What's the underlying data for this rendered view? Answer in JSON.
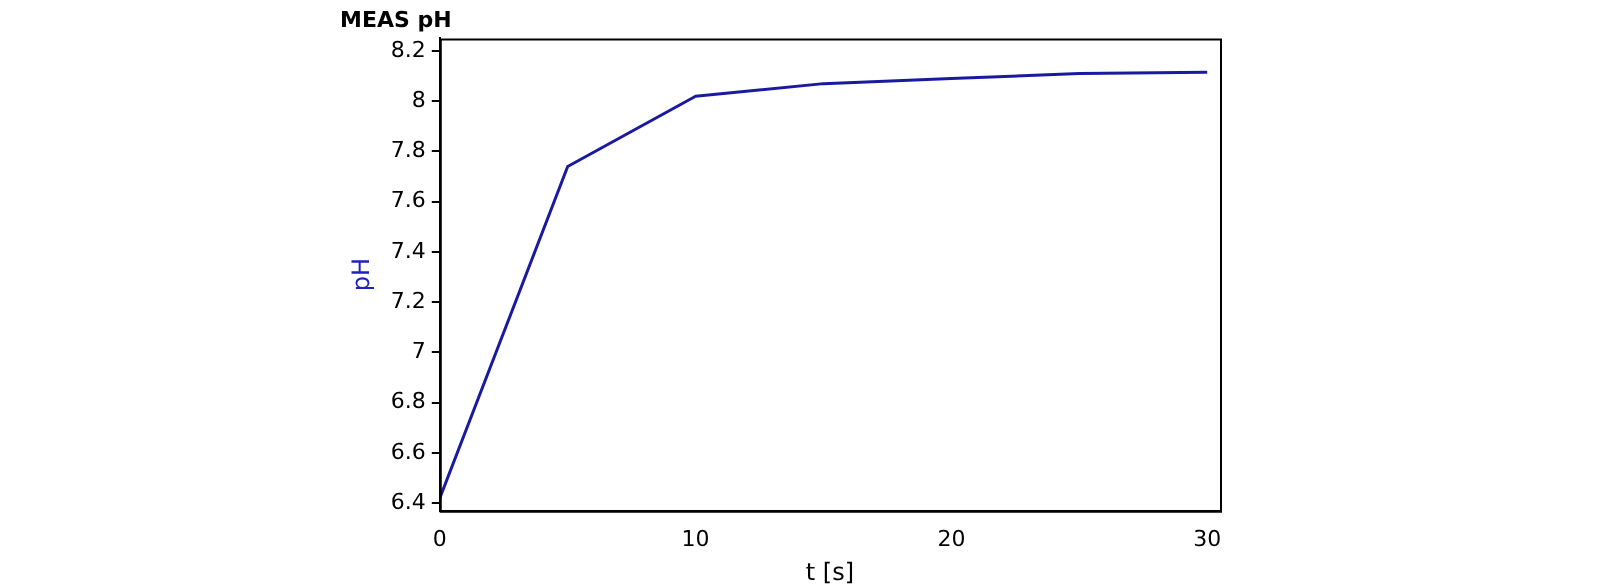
{
  "chart_data": {
    "type": "line",
    "title": "MEAS pH",
    "xlabel": "t [s]",
    "ylabel": "pH",
    "x": [
      0,
      5,
      10,
      15,
      20,
      25,
      30
    ],
    "series": [
      {
        "color": "#1a1aa0",
        "values": [
          6.42,
          7.74,
          8.02,
          8.07,
          8.09,
          8.11,
          8.115
        ]
      }
    ],
    "xlim": [
      0,
      30.5
    ],
    "xticks": [
      0,
      10,
      20,
      30
    ],
    "ylim": [
      6.37,
      8.25
    ],
    "yticks": [
      6.4,
      6.6,
      6.8,
      7,
      7.2,
      7.4,
      7.6,
      7.8,
      8,
      8.2
    ],
    "grid": false,
    "legend": false,
    "marker": "none",
    "line_style": "solid"
  }
}
